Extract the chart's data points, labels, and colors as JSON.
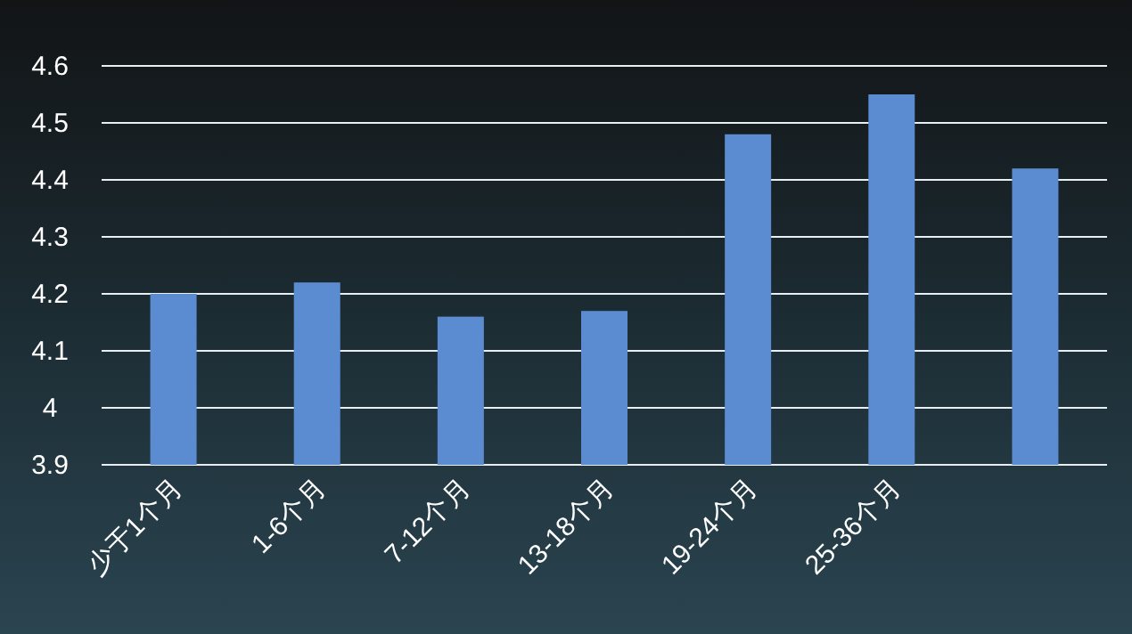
{
  "chart_data": {
    "type": "bar",
    "categories": [
      "少于1个月",
      "1-6个月",
      "7-12个月",
      "13-18个月",
      "19-24个月",
      "25-36个月",
      null
    ],
    "values": [
      4.2,
      4.22,
      4.16,
      4.17,
      4.48,
      4.55,
      4.42
    ],
    "color": "#5b8bd0",
    "ylim": [
      3.9,
      4.6
    ],
    "yticks": [
      3.9,
      4,
      4.1,
      4.2,
      4.3,
      4.4,
      4.5,
      4.6
    ],
    "grid": "y"
  }
}
